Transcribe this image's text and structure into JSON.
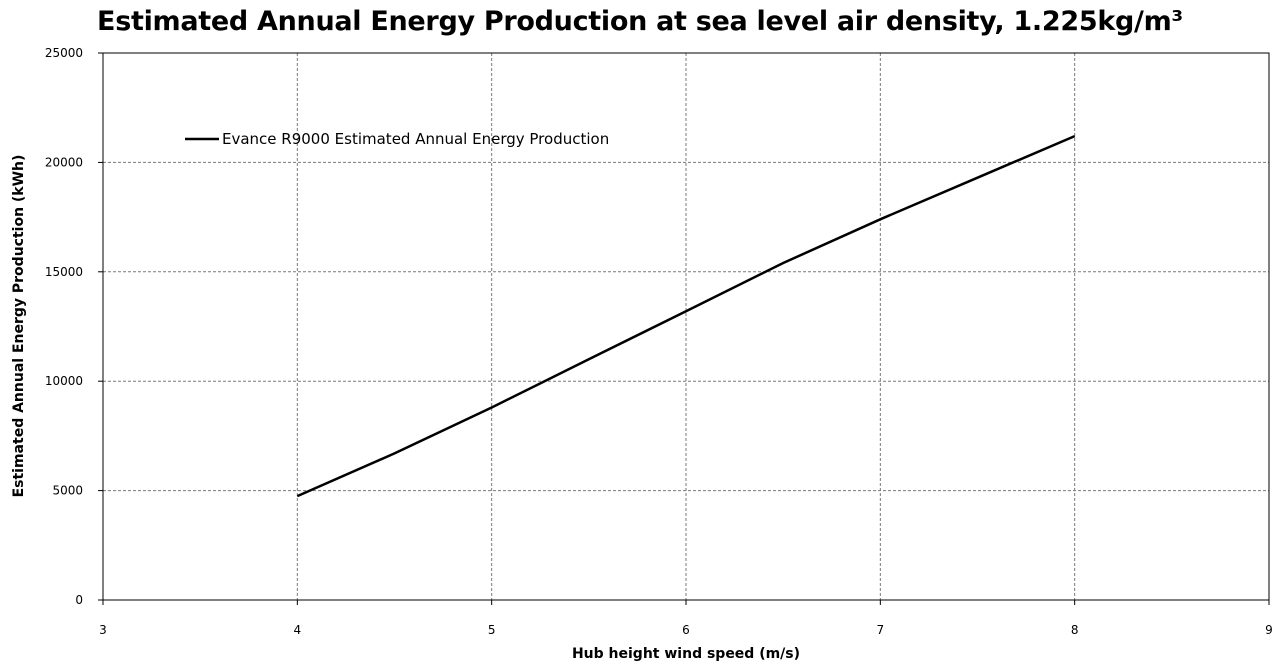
{
  "chart_data": {
    "type": "line",
    "title": "Estimated Annual Energy Production at sea level air density, 1.225kg/m³",
    "xlabel": "Hub height wind speed (m/s)",
    "ylabel": "Estimated Annual Energy Production (kWh)",
    "xlim": [
      3,
      9
    ],
    "ylim": [
      0,
      25000
    ],
    "x_ticks": [
      3,
      4,
      5,
      6,
      7,
      8,
      9
    ],
    "y_ticks": [
      0,
      5000,
      10000,
      15000,
      20000,
      25000
    ],
    "grid": true,
    "legend_position": "top-left",
    "series": [
      {
        "name": "Evance R9000  Estimated Annual Energy Production",
        "color": "#000000",
        "x": [
          4,
          4.5,
          5,
          5.5,
          6,
          6.5,
          7,
          7.5,
          8
        ],
        "y": [
          4750,
          6700,
          8800,
          11000,
          13200,
          15400,
          17400,
          19300,
          21200
        ]
      }
    ]
  }
}
